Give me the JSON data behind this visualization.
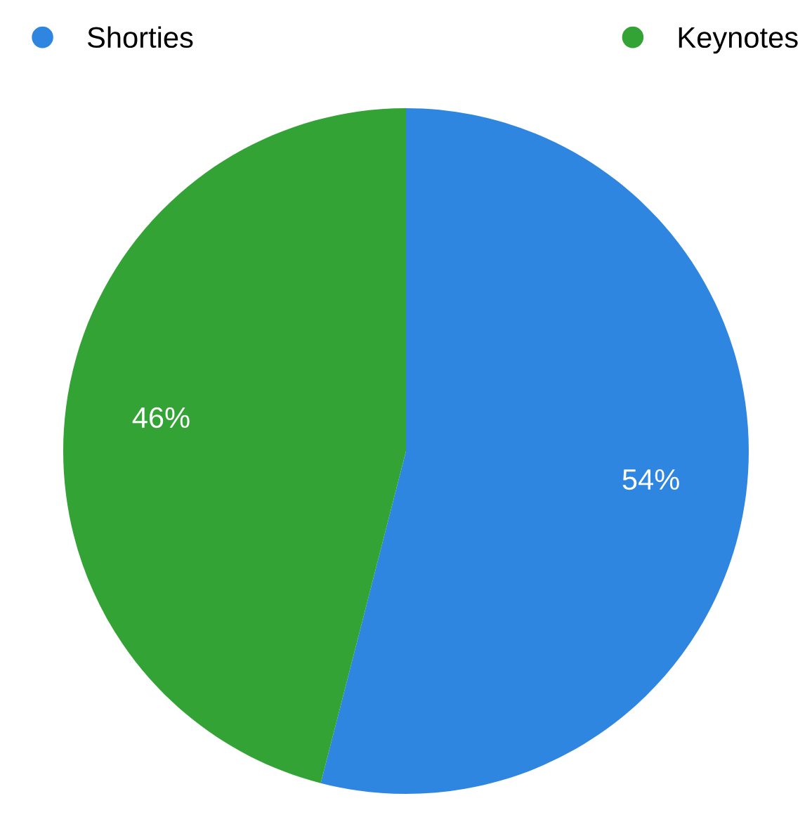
{
  "chart_data": {
    "type": "pie",
    "categories": [
      "Shorties",
      "Keynotes"
    ],
    "values": [
      54,
      46
    ],
    "colors": [
      "#2f86e0",
      "#34a336"
    ],
    "value_labels": [
      "54%",
      "46%"
    ],
    "legend": "top"
  }
}
